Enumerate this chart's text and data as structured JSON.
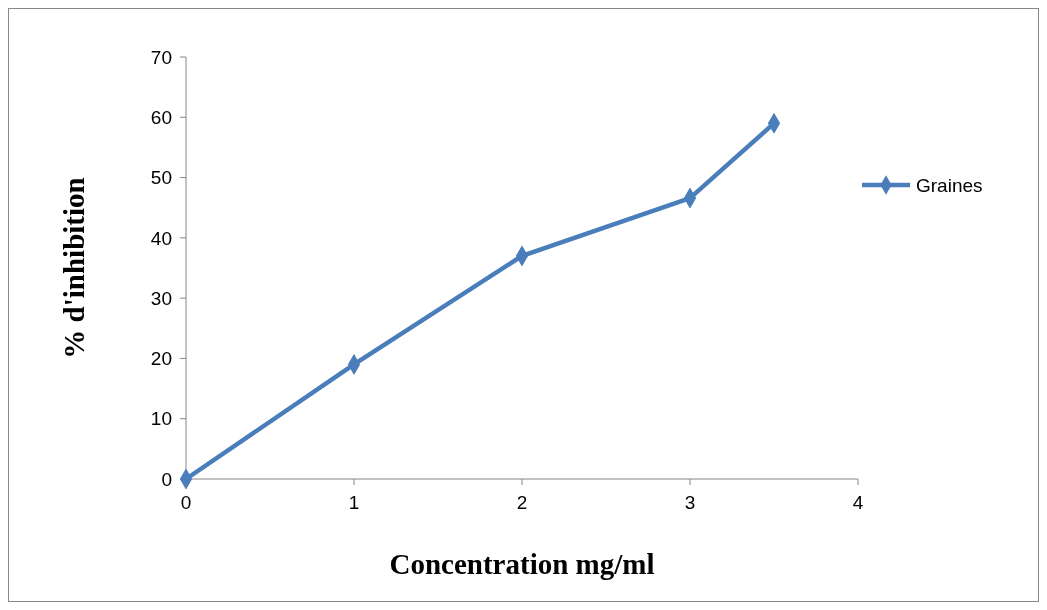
{
  "chart_data": {
    "type": "line",
    "xlabel": "Concentration mg/ml",
    "ylabel": "% d'inhibition",
    "x": [
      0,
      1,
      2,
      3,
      3.5
    ],
    "series": [
      {
        "name": "Graines",
        "color": "#4a7ebb",
        "values": [
          0,
          19,
          37,
          46.6,
          59
        ]
      }
    ],
    "xlim": [
      0,
      4
    ],
    "xticks": [
      0,
      1,
      2,
      3,
      4
    ],
    "ylim": [
      0,
      70
    ],
    "yticks": [
      0,
      10,
      20,
      30,
      40,
      50,
      60,
      70
    ],
    "grid": false,
    "legend": "right",
    "marker": "diamond",
    "line_style": "solid"
  }
}
